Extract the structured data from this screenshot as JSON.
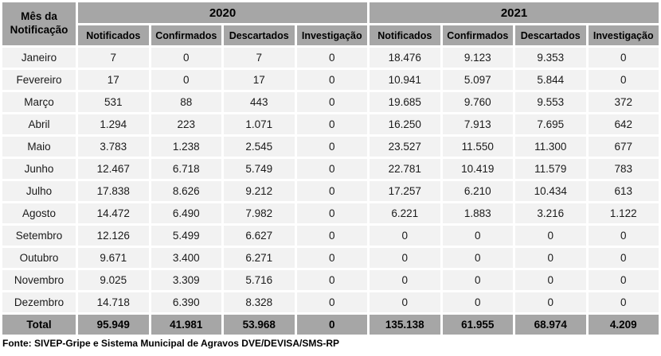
{
  "table": {
    "corner": {
      "line1": "Mês da",
      "line2": "Notificação"
    },
    "years": [
      "2020",
      "2021"
    ],
    "columns": [
      "Notificados",
      "Confirmados",
      "Descartados",
      "Investigação"
    ],
    "rows": [
      {
        "month": "Janeiro",
        "values": [
          "7",
          "0",
          "7",
          "0",
          "18.476",
          "9.123",
          "9.353",
          "0"
        ]
      },
      {
        "month": "Fevereiro",
        "values": [
          "17",
          "0",
          "17",
          "0",
          "10.941",
          "5.097",
          "5.844",
          "0"
        ]
      },
      {
        "month": "Março",
        "values": [
          "531",
          "88",
          "443",
          "0",
          "19.685",
          "9.760",
          "9.553",
          "372"
        ]
      },
      {
        "month": "Abril",
        "values": [
          "1.294",
          "223",
          "1.071",
          "0",
          "16.250",
          "7.913",
          "7.695",
          "642"
        ]
      },
      {
        "month": "Maio",
        "values": [
          "3.783",
          "1.238",
          "2.545",
          "0",
          "23.527",
          "11.550",
          "11.300",
          "677"
        ]
      },
      {
        "month": "Junho",
        "values": [
          "12.467",
          "6.718",
          "5.749",
          "0",
          "22.781",
          "10.419",
          "11.579",
          "783"
        ]
      },
      {
        "month": "Julho",
        "values": [
          "17.838",
          "8.626",
          "9.212",
          "0",
          "17.257",
          "6.210",
          "10.434",
          "613"
        ]
      },
      {
        "month": "Agosto",
        "values": [
          "14.472",
          "6.490",
          "7.982",
          "0",
          "6.221",
          "1.883",
          "3.216",
          "1.122"
        ]
      },
      {
        "month": "Setembro",
        "values": [
          "12.126",
          "5.499",
          "6.627",
          "0",
          "0",
          "0",
          "0",
          "0"
        ]
      },
      {
        "month": "Outubro",
        "values": [
          "9.671",
          "3.400",
          "6.271",
          "0",
          "0",
          "0",
          "0",
          "0"
        ]
      },
      {
        "month": "Novembro",
        "values": [
          "9.025",
          "3.309",
          "5.716",
          "0",
          "0",
          "0",
          "0",
          "0"
        ]
      },
      {
        "month": "Dezembro",
        "values": [
          "14.718",
          "6.390",
          "8.328",
          "0",
          "0",
          "0",
          "0",
          "0"
        ]
      }
    ],
    "total": {
      "label": "Total",
      "values": [
        "95.949",
        "41.981",
        "53.968",
        "0",
        "135.138",
        "61.955",
        "68.974",
        "4.209"
      ]
    }
  },
  "footer": {
    "source": "Fonte: SIVEP-Gripe e Sistema Municipal de Agravos DVE/DEVISA/SMS-RP"
  },
  "colors": {
    "header_bg": "#a6a6a6",
    "row_bg": "#f2f2f2",
    "text": "#1a1a1a"
  }
}
